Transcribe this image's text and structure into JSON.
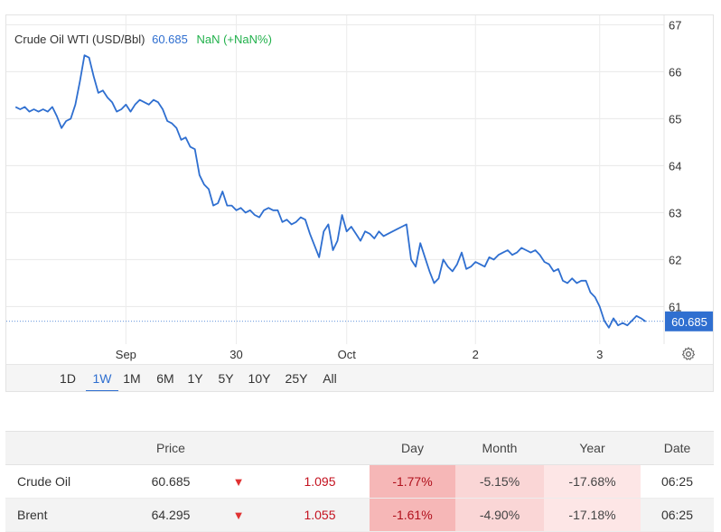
{
  "legend": {
    "name": "Crude Oil WTI (USD/Bbl)",
    "last": "60.685",
    "change": "NaN (+NaN%)"
  },
  "chart_data": {
    "type": "line",
    "title": "Crude Oil WTI (USD/Bbl)",
    "series_color": "#2f6fd0",
    "ylim": [
      60.2,
      67.2
    ],
    "y_ticks": [
      61,
      62,
      63,
      64,
      65,
      66,
      67
    ],
    "x_ticks": [
      {
        "label": "Sep",
        "at": 24
      },
      {
        "label": "30",
        "at": 48
      },
      {
        "label": "Oct",
        "at": 72
      },
      {
        "label": "2",
        "at": 100
      },
      {
        "label": "3",
        "at": 127
      }
    ],
    "xlim": [
      -2,
      141
    ],
    "last_value": 60.685,
    "last_label": "60.685",
    "values": [
      65.25,
      65.2,
      65.25,
      65.15,
      65.2,
      65.15,
      65.2,
      65.15,
      65.25,
      65.05,
      64.8,
      64.95,
      65.0,
      65.3,
      65.8,
      66.35,
      66.3,
      65.9,
      65.55,
      65.6,
      65.45,
      65.35,
      65.15,
      65.2,
      65.3,
      65.15,
      65.3,
      65.4,
      65.35,
      65.3,
      65.4,
      65.35,
      65.2,
      64.95,
      64.9,
      64.8,
      64.55,
      64.6,
      64.4,
      64.35,
      63.8,
      63.6,
      63.5,
      63.15,
      63.2,
      63.45,
      63.15,
      63.15,
      63.05,
      63.1,
      63.0,
      63.05,
      62.95,
      62.9,
      63.05,
      63.1,
      63.05,
      63.05,
      62.8,
      62.85,
      62.75,
      62.8,
      62.9,
      62.85,
      62.55,
      62.3,
      62.05,
      62.6,
      62.75,
      62.2,
      62.4,
      62.95,
      62.6,
      62.7,
      62.55,
      62.4,
      62.6,
      62.55,
      62.45,
      62.6,
      62.5,
      62.55,
      62.6,
      62.65,
      62.7,
      62.75,
      62.0,
      61.85,
      62.35,
      62.05,
      61.75,
      61.5,
      61.6,
      62.0,
      61.85,
      61.75,
      61.9,
      62.15,
      61.8,
      61.85,
      61.95,
      61.9,
      61.85,
      62.05,
      62.0,
      62.1,
      62.15,
      62.2,
      62.1,
      62.15,
      62.25,
      62.2,
      62.15,
      62.2,
      62.1,
      61.95,
      61.9,
      61.75,
      61.8,
      61.55,
      61.5,
      61.6,
      61.5,
      61.55,
      61.55,
      61.3,
      61.2,
      61.0,
      60.7,
      60.55,
      60.75,
      60.6,
      60.65,
      60.6,
      60.7,
      60.8,
      60.75,
      60.68
    ]
  },
  "ranges": [
    "1D",
    "1W",
    "1M",
    "6M",
    "1Y",
    "5Y",
    "10Y",
    "25Y",
    "All"
  ],
  "active_range": "1W",
  "settings_icon": "gear-icon",
  "table": {
    "headers": {
      "name": "",
      "price": "Price",
      "arrow": "",
      "change": "",
      "day": "Day",
      "month": "Month",
      "year": "Year",
      "date": "Date"
    },
    "rows": [
      {
        "name": "Crude Oil",
        "price": "60.685",
        "arrow": "▼",
        "change": "1.095",
        "day": "-1.77%",
        "month": "-5.15%",
        "year": "-17.68%",
        "date": "06:25"
      },
      {
        "name": "Brent",
        "price": "64.295",
        "arrow": "▼",
        "change": "1.055",
        "day": "-1.61%",
        "month": "-4.90%",
        "year": "-17.18%",
        "date": "06:25"
      }
    ]
  }
}
